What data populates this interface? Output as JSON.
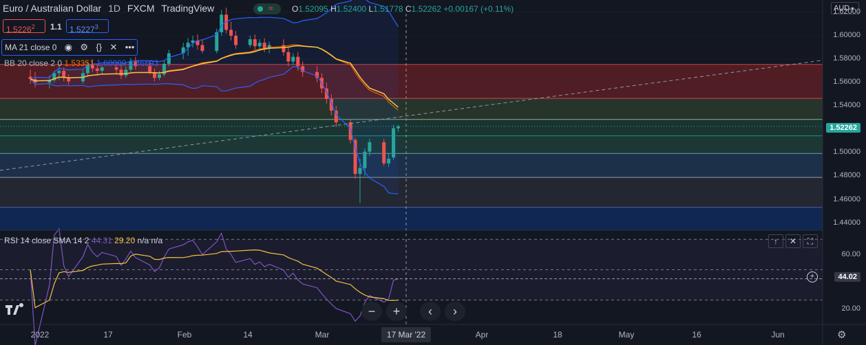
{
  "header": {
    "symbol": "Euro / Australian Dollar",
    "interval": "1D",
    "exchange": "FXCM",
    "source": "TradingView"
  },
  "ohlc": {
    "o_label": "O",
    "o": "1.52095",
    "h_label": "H",
    "h": "1.52400",
    "l_label": "L",
    "l": "1.51778",
    "c_label": "C",
    "c": "1.52262",
    "change": "+0.00167 (+0.11%)"
  },
  "sell_price": {
    "main": "1.5226",
    "small": "2"
  },
  "spread": "1.1",
  "buy_price": {
    "main": "1.5227",
    "small": "3"
  },
  "currency": "AUD",
  "indicators": {
    "ma": "MA 21 close 0",
    "bb_label": "BB 20 close 2 0",
    "bb_values": [
      "1.53351",
      "1.60009",
      "1.46693"
    ],
    "rsi_label": "RSI 14 close SMA 14 2",
    "rsi_values": [
      "44.31",
      "29.20",
      "n/a",
      "n/a"
    ]
  },
  "price_axis": [
    "1.62000",
    "1.60000",
    "1.58000",
    "1.56000",
    "1.54000",
    "1.52000",
    "1.50000",
    "1.48000",
    "1.46000",
    "1.44000"
  ],
  "last_price_badge": "1.52262",
  "rsi_axis": [
    "60.00",
    "44.02",
    "20.00"
  ],
  "time_axis": [
    "2022",
    "17",
    "Feb",
    "14",
    "Mar",
    "Apr",
    "18",
    "May",
    "16",
    "Jun"
  ],
  "crosshair_date": "17 Mar '22",
  "colors": {
    "up": "#26a69a",
    "down": "#ef5350",
    "ma": "#f7c442",
    "bb": "#2962ff",
    "rsi": "#7e57c2",
    "bg": "#131722"
  },
  "chart_data": {
    "type": "candlestick",
    "title": "Euro / Australian Dollar",
    "ylim": [
      1.43,
      1.625
    ],
    "candles": [
      {
        "d": "2021-12-30",
        "o": 1.565,
        "h": 1.571,
        "l": 1.559,
        "c": 1.563
      },
      {
        "d": "2021-12-31",
        "o": 1.563,
        "h": 1.569,
        "l": 1.556,
        "c": 1.56
      },
      {
        "d": "2022-01-03",
        "o": 1.56,
        "h": 1.566,
        "l": 1.555,
        "c": 1.562
      },
      {
        "d": "2022-01-04",
        "o": 1.562,
        "h": 1.57,
        "l": 1.56,
        "c": 1.568
      },
      {
        "d": "2022-01-05",
        "o": 1.568,
        "h": 1.575,
        "l": 1.562,
        "c": 1.57
      },
      {
        "d": "2022-01-06",
        "o": 1.57,
        "h": 1.573,
        "l": 1.561,
        "c": 1.564
      },
      {
        "d": "2022-01-07",
        "o": 1.564,
        "h": 1.567,
        "l": 1.558,
        "c": 1.561
      },
      {
        "d": "2022-01-10",
        "o": 1.561,
        "h": 1.571,
        "l": 1.559,
        "c": 1.568
      },
      {
        "d": "2022-01-11",
        "o": 1.568,
        "h": 1.578,
        "l": 1.565,
        "c": 1.575
      },
      {
        "d": "2022-01-12",
        "o": 1.575,
        "h": 1.58,
        "l": 1.569,
        "c": 1.572
      },
      {
        "d": "2022-01-13",
        "o": 1.572,
        "h": 1.576,
        "l": 1.566,
        "c": 1.57
      },
      {
        "d": "2022-01-14",
        "o": 1.57,
        "h": 1.575,
        "l": 1.567,
        "c": 1.573
      },
      {
        "d": "2022-01-17",
        "o": 1.573,
        "h": 1.577,
        "l": 1.568,
        "c": 1.571
      },
      {
        "d": "2022-01-18",
        "o": 1.571,
        "h": 1.575,
        "l": 1.563,
        "c": 1.566
      },
      {
        "d": "2022-01-19",
        "o": 1.566,
        "h": 1.574,
        "l": 1.564,
        "c": 1.571
      },
      {
        "d": "2022-01-20",
        "o": 1.571,
        "h": 1.581,
        "l": 1.569,
        "c": 1.578
      },
      {
        "d": "2022-01-21",
        "o": 1.578,
        "h": 1.582,
        "l": 1.571,
        "c": 1.574
      },
      {
        "d": "2022-01-24",
        "o": 1.574,
        "h": 1.579,
        "l": 1.567,
        "c": 1.569
      },
      {
        "d": "2022-01-25",
        "o": 1.569,
        "h": 1.572,
        "l": 1.561,
        "c": 1.564
      },
      {
        "d": "2022-01-26",
        "o": 1.564,
        "h": 1.57,
        "l": 1.562,
        "c": 1.567
      },
      {
        "d": "2022-01-27",
        "o": 1.567,
        "h": 1.579,
        "l": 1.565,
        "c": 1.576
      },
      {
        "d": "2022-01-28",
        "o": 1.576,
        "h": 1.588,
        "l": 1.574,
        "c": 1.585
      },
      {
        "d": "2022-01-31",
        "o": 1.585,
        "h": 1.594,
        "l": 1.58,
        "c": 1.59
      },
      {
        "d": "2022-02-01",
        "o": 1.59,
        "h": 1.598,
        "l": 1.583,
        "c": 1.594
      },
      {
        "d": "2022-02-02",
        "o": 1.594,
        "h": 1.6,
        "l": 1.59,
        "c": 1.596
      },
      {
        "d": "2022-02-03",
        "o": 1.596,
        "h": 1.601,
        "l": 1.588,
        "c": 1.592
      },
      {
        "d": "2022-02-04",
        "o": 1.592,
        "h": 1.597,
        "l": 1.585,
        "c": 1.587
      },
      {
        "d": "2022-02-07",
        "o": 1.587,
        "h": 1.606,
        "l": 1.585,
        "c": 1.603
      },
      {
        "d": "2022-02-08",
        "o": 1.603,
        "h": 1.622,
        "l": 1.6,
        "c": 1.618
      },
      {
        "d": "2022-02-09",
        "o": 1.618,
        "h": 1.624,
        "l": 1.602,
        "c": 1.605
      },
      {
        "d": "2022-02-10",
        "o": 1.605,
        "h": 1.612,
        "l": 1.596,
        "c": 1.6
      },
      {
        "d": "2022-02-11",
        "o": 1.6,
        "h": 1.604,
        "l": 1.589,
        "c": 1.592
      },
      {
        "d": "2022-02-14",
        "o": 1.592,
        "h": 1.6,
        "l": 1.59,
        "c": 1.597
      },
      {
        "d": "2022-02-15",
        "o": 1.597,
        "h": 1.601,
        "l": 1.588,
        "c": 1.591
      },
      {
        "d": "2022-02-16",
        "o": 1.591,
        "h": 1.597,
        "l": 1.587,
        "c": 1.594
      },
      {
        "d": "2022-02-17",
        "o": 1.594,
        "h": 1.598,
        "l": 1.586,
        "c": 1.589
      },
      {
        "d": "2022-02-18",
        "o": 1.589,
        "h": 1.595,
        "l": 1.585,
        "c": 1.592
      },
      {
        "d": "2022-02-21",
        "o": 1.592,
        "h": 1.597,
        "l": 1.583,
        "c": 1.586
      },
      {
        "d": "2022-02-22",
        "o": 1.586,
        "h": 1.59,
        "l": 1.574,
        "c": 1.578
      },
      {
        "d": "2022-02-23",
        "o": 1.578,
        "h": 1.585,
        "l": 1.575,
        "c": 1.582
      },
      {
        "d": "2022-02-24",
        "o": 1.582,
        "h": 1.586,
        "l": 1.57,
        "c": 1.574
      },
      {
        "d": "2022-02-25",
        "o": 1.574,
        "h": 1.578,
        "l": 1.565,
        "c": 1.569
      },
      {
        "d": "2022-02-28",
        "o": 1.569,
        "h": 1.574,
        "l": 1.56,
        "c": 1.564
      },
      {
        "d": "2022-03-01",
        "o": 1.564,
        "h": 1.568,
        "l": 1.551,
        "c": 1.555
      },
      {
        "d": "2022-03-02",
        "o": 1.555,
        "h": 1.56,
        "l": 1.542,
        "c": 1.546
      },
      {
        "d": "2022-03-03",
        "o": 1.546,
        "h": 1.55,
        "l": 1.532,
        "c": 1.536
      },
      {
        "d": "2022-03-04",
        "o": 1.536,
        "h": 1.54,
        "l": 1.522,
        "c": 1.526
      },
      {
        "d": "2022-03-07",
        "o": 1.526,
        "h": 1.529,
        "l": 1.508,
        "c": 1.511
      },
      {
        "d": "2022-03-08",
        "o": 1.511,
        "h": 1.513,
        "l": 1.478,
        "c": 1.482
      },
      {
        "d": "2022-03-09",
        "o": 1.482,
        "h": 1.495,
        "l": 1.457,
        "c": 1.487
      },
      {
        "d": "2022-03-10",
        "o": 1.487,
        "h": 1.504,
        "l": 1.48,
        "c": 1.501
      },
      {
        "d": "2022-03-11",
        "o": 1.501,
        "h": 1.512,
        "l": 1.497,
        "c": 1.509
      },
      {
        "d": "2022-03-14",
        "o": 1.509,
        "h": 1.512,
        "l": 1.489,
        "c": 1.491
      },
      {
        "d": "2022-03-15",
        "o": 1.491,
        "h": 1.5,
        "l": 1.488,
        "c": 1.495
      },
      {
        "d": "2022-03-16",
        "o": 1.496,
        "h": 1.524,
        "l": 1.494,
        "c": 1.521
      },
      {
        "d": "2022-03-17",
        "o": 1.52095,
        "h": 1.524,
        "l": 1.51778,
        "c": 1.52262
      }
    ],
    "bb_upper_end": 1.60009,
    "bb_lower_end": 1.46693,
    "bb_basis_end": 1.53351,
    "rsi": {
      "ylim": [
        14,
        76
      ],
      "levels": [
        70,
        50,
        30
      ],
      "last": 44.31,
      "sma_last": 29.2
    }
  }
}
